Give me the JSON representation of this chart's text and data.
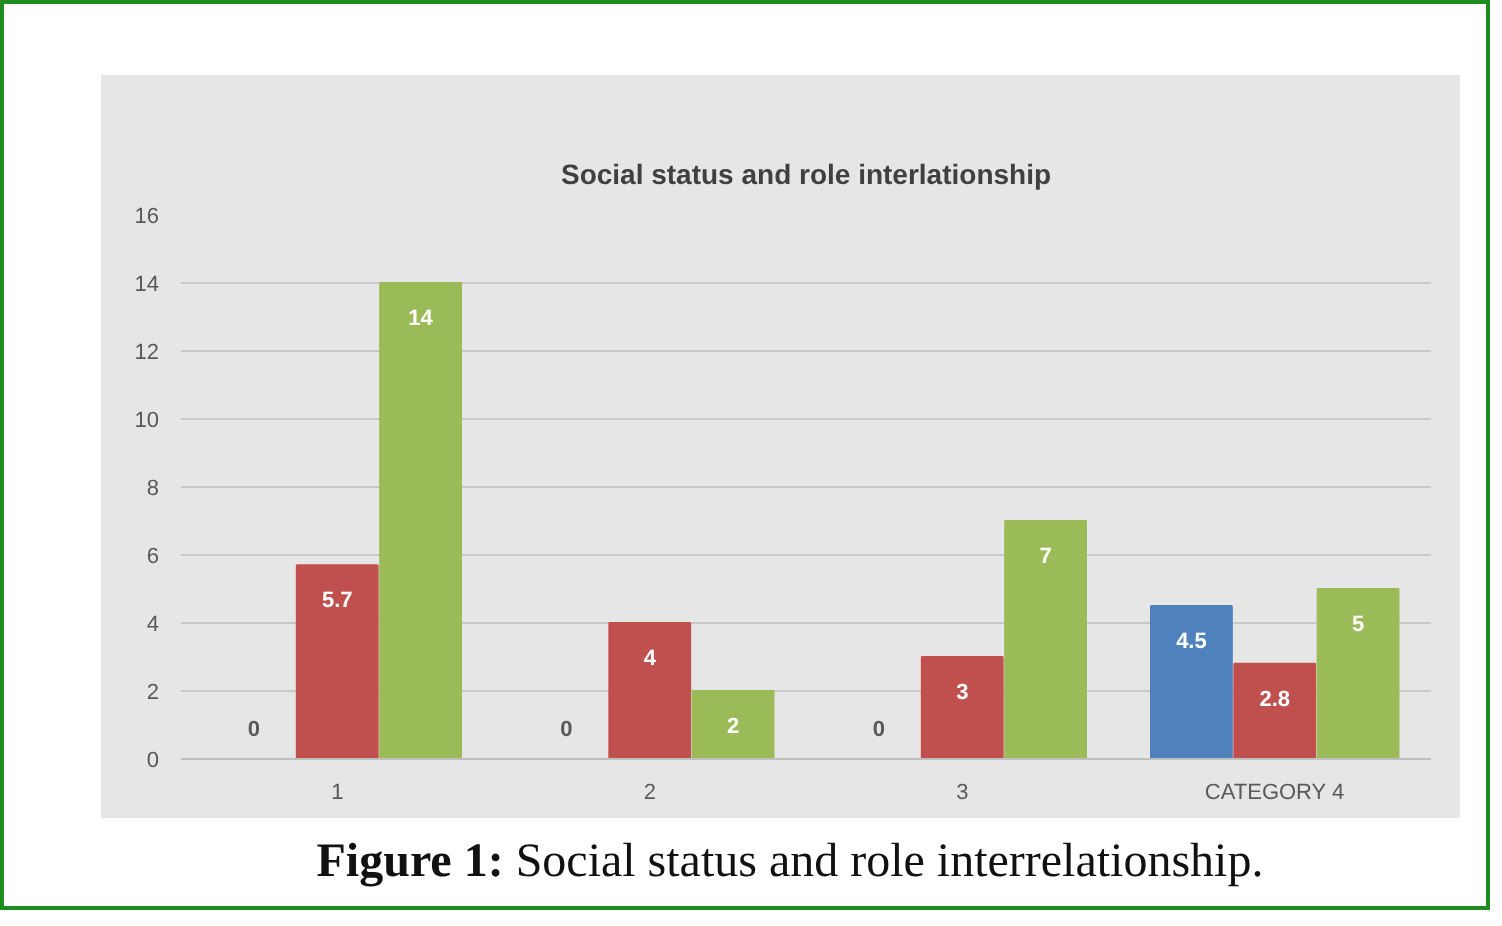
{
  "chart_data": {
    "type": "bar",
    "title": "Social status and role interlationship",
    "categories": [
      "1",
      "2",
      "3",
      "CATEGORY 4"
    ],
    "series": [
      {
        "color": "#4f81bd",
        "values": [
          0,
          0,
          0,
          4.5
        ]
      },
      {
        "color": "#c0504d",
        "values": [
          5.7,
          4,
          3,
          2.8
        ]
      },
      {
        "color": "#9bbb59",
        "values": [
          14,
          2,
          7,
          5
        ]
      }
    ],
    "ylim": [
      0,
      16
    ],
    "yticks": [
      0,
      2,
      4,
      6,
      8,
      10,
      12,
      14,
      16
    ],
    "grid": "y",
    "data_labels": true,
    "annotations": [
      "Figure 1: Social status and role interrelationship."
    ]
  }
}
